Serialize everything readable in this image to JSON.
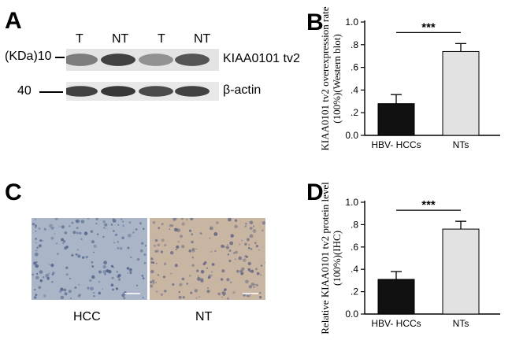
{
  "panel_labels": {
    "a": "A",
    "b": "B",
    "c": "C",
    "d": "D"
  },
  "western_blot": {
    "lanes": [
      "T",
      "NT",
      "T",
      "NT"
    ],
    "kda_unit_label": "(KDa)10",
    "marker_40": "40",
    "band_labels": [
      "KIAA0101 tv2",
      "β-actin"
    ],
    "top_band_intensity": [
      0.55,
      0.85,
      0.45,
      0.75
    ],
    "bottom_band_intensity": [
      0.85,
      0.9,
      0.8,
      0.85
    ]
  },
  "ihc": {
    "captions": [
      "HCC",
      "NT"
    ],
    "colors": {
      "hcc_bg": "#aab6c8",
      "hcc_nuclei": "#4d5f86",
      "nt_bg": "#c9b6a2",
      "nt_nuclei": "#5a5f82"
    }
  },
  "chart_data": [
    {
      "type": "bar",
      "panel": "B",
      "categories": [
        "HBV- HCCs",
        "NTs"
      ],
      "values": [
        0.28,
        0.74
      ],
      "error": [
        0.08,
        0.07
      ],
      "ylabel": "KIAA0101 tv2 overexpression rate\n(100%)(Western blot)",
      "ylim": [
        0,
        1.0
      ],
      "yticks": [
        "0.0",
        ".2",
        ".4",
        ".6",
        ".8",
        "1.0"
      ],
      "significance": "***",
      "bar_colors": [
        "#111111",
        "#e2e2e2"
      ]
    },
    {
      "type": "bar",
      "panel": "D",
      "categories": [
        "HBV- HCCs",
        "NTs"
      ],
      "values": [
        0.31,
        0.76
      ],
      "error": [
        0.07,
        0.07
      ],
      "ylabel": "Relative KIAA0101 tv2 protein level\n(100%)(IHC)",
      "ylim": [
        0,
        1.0
      ],
      "yticks": [
        "0.0",
        ".2",
        ".4",
        ".6",
        ".8",
        "1.0"
      ],
      "significance": "***",
      "bar_colors": [
        "#111111",
        "#e2e2e2"
      ]
    }
  ]
}
